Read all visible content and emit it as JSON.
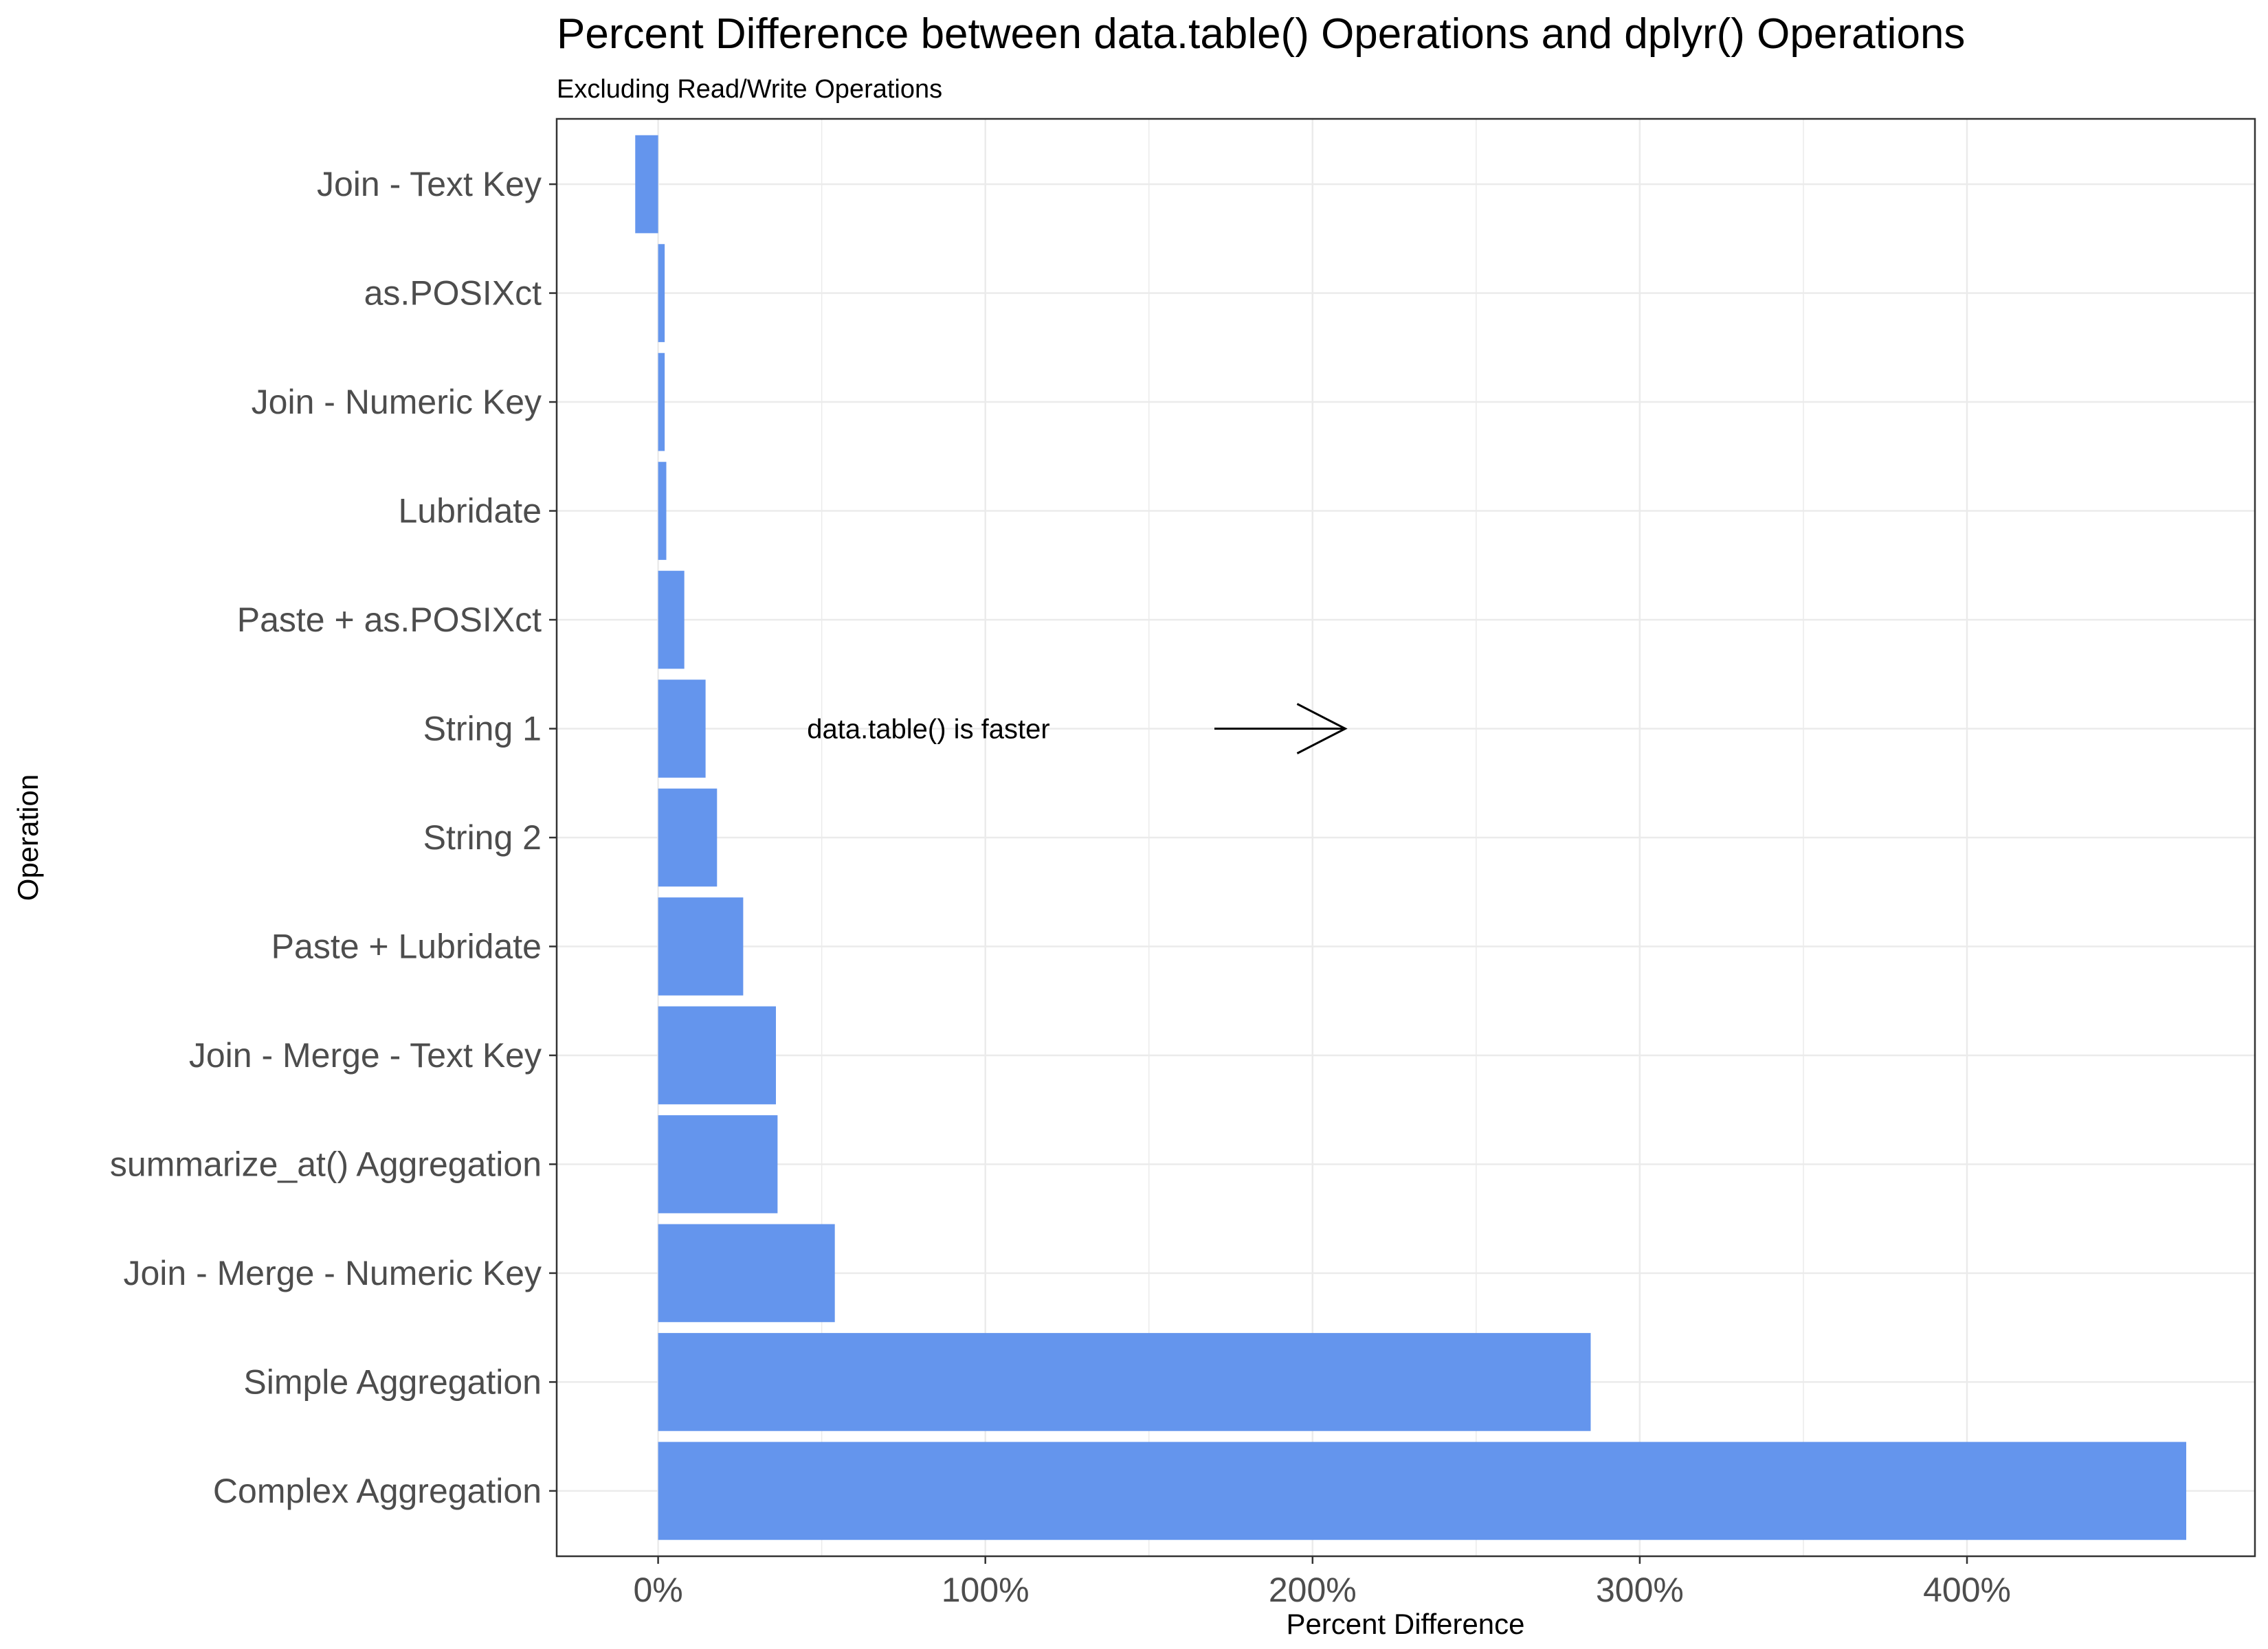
{
  "chart_data": {
    "type": "bar",
    "orientation": "horizontal",
    "title": "Percent Difference between data.table() Operations and dplyr() Operations",
    "subtitle": "Excluding Read/Write Operations",
    "xlabel": "Percent Difference",
    "ylabel": "Operation",
    "xlim": [
      -31,
      488
    ],
    "x_ticks": [
      0,
      100,
      200,
      300,
      400
    ],
    "x_tick_labels": [
      "0%",
      "100%",
      "200%",
      "300%",
      "400%"
    ],
    "grid": true,
    "bar_color": "#6495ED",
    "categories": [
      "Join - Text Key",
      "as.POSIXct",
      "Join - Numeric Key",
      "Lubridate",
      "Paste + as.POSIXct",
      "String 1",
      "String 2",
      "Paste + Lubridate",
      "Join - Merge - Text Key",
      "summarize_at() Aggregation",
      "Join - Merge - Numeric Key",
      "Simple Aggregation",
      "Complex Aggregation"
    ],
    "values": [
      -7,
      2,
      2,
      2.5,
      8,
      14.5,
      18,
      26,
      36,
      36.5,
      54,
      285,
      467
    ],
    "annotation": {
      "text": "data.table() is faster",
      "arrow": "right"
    }
  }
}
